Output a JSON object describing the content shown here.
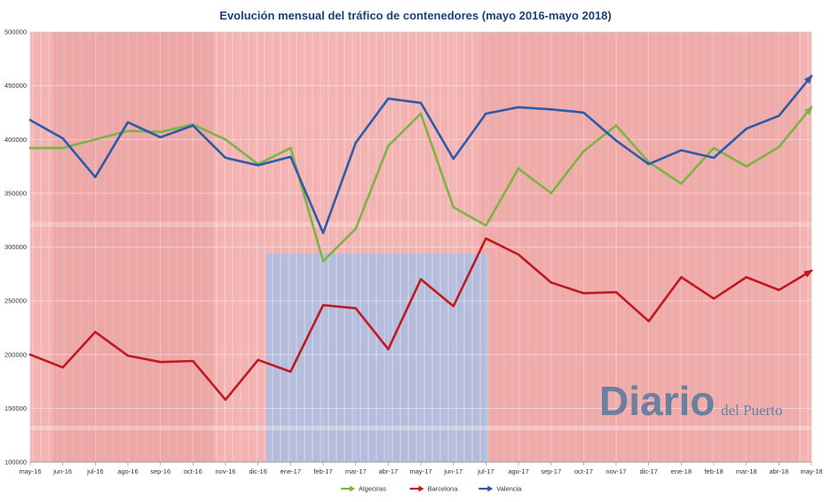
{
  "chart_data": {
    "type": "line",
    "title": "Evolución mensual del tráfico de contenedores (mayo 2016-mayo 2018)",
    "xlabel": "",
    "ylabel": "",
    "categories": [
      "may-16",
      "jun-16",
      "jul-16",
      "ago-16",
      "sep-16",
      "oct-16",
      "nov-16",
      "dic-16",
      "ene-17",
      "feb-17",
      "mar-17",
      "abr-17",
      "may-17",
      "jun-17",
      "jul-17",
      "ago-17",
      "sep-17",
      "oct-17",
      "nov-17",
      "dic-17",
      "ene-18",
      "feb-18",
      "mar-18",
      "abr-18",
      "may-18"
    ],
    "ylim": [
      100000,
      500000
    ],
    "yticks": [
      100000,
      150000,
      200000,
      250000,
      300000,
      350000,
      400000,
      450000,
      500000
    ],
    "ytick_labels": [
      "100000",
      "150000",
      "200000",
      "250000",
      "300000",
      "350000",
      "400000",
      "450000",
      "500000"
    ],
    "grid": true,
    "legend_position": "bottom",
    "series": [
      {
        "name": "Algeciras",
        "color": "#7cb342",
        "values": [
          392000,
          392000,
          400000,
          408000,
          407000,
          414000,
          400000,
          377000,
          392000,
          287000,
          317000,
          394000,
          424000,
          337000,
          320000,
          373000,
          350000,
          389000,
          413000,
          379000,
          359000,
          392000,
          375000,
          393000,
          430000
        ]
      },
      {
        "name": "Barcelona",
        "color": "#c0191e",
        "values": [
          200000,
          188000,
          221000,
          199000,
          193000,
          194000,
          158000,
          195000,
          184000,
          246000,
          243000,
          205000,
          270000,
          245000,
          308000,
          293000,
          267000,
          257000,
          258000,
          231000,
          272000,
          252000,
          272000,
          260000,
          278000
        ]
      },
      {
        "name": "Valencia",
        "color": "#2e5aa8",
        "values": [
          418000,
          401000,
          365000,
          416000,
          402000,
          413000,
          383000,
          376000,
          384000,
          313000,
          397000,
          438000,
          434000,
          382000,
          424000,
          430000,
          428000,
          425000,
          399000,
          377000,
          390000,
          383000,
          410000,
          422000,
          459000
        ]
      }
    ]
  },
  "watermark": {
    "brand": "Diario",
    "sub": "del Puerto",
    "color": "#6b7f9e"
  },
  "background": {
    "description_colors": [
      "#e8898a",
      "#f1a9a9",
      "#a3b6da"
    ]
  }
}
